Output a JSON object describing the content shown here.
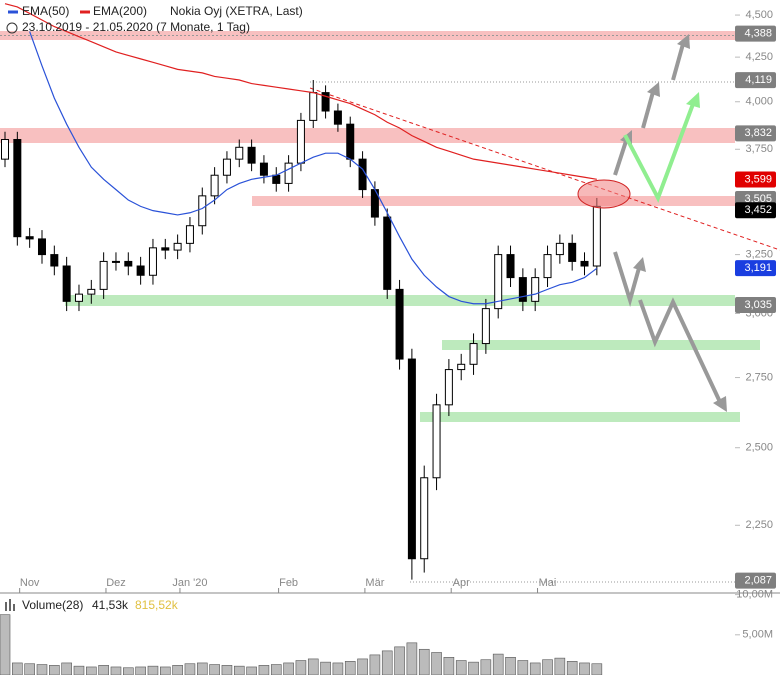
{
  "chart_data": {
    "type": "candlestick",
    "title": "Nokia Oyj (XETRA, Last)",
    "subtitle": "23.10.2019 - 21.05.2020  (7 Monate, 1 Tag)",
    "log_scale": true,
    "ylim": [
      2.055,
      4.593
    ],
    "yticks": [
      {
        "value": 4.5,
        "label": "4,500"
      },
      {
        "value": 4.25,
        "label": "4,250"
      },
      {
        "value": 4.0,
        "label": "4,000"
      },
      {
        "value": 3.75,
        "label": "3,750"
      },
      {
        "value": 3.5,
        "label": "3,500"
      },
      {
        "value": 3.25,
        "label": "3,250"
      },
      {
        "value": 3.0,
        "label": "3,000"
      },
      {
        "value": 2.75,
        "label": "2,750"
      },
      {
        "value": 2.5,
        "label": "2,500"
      },
      {
        "value": 2.25,
        "label": "2,250"
      }
    ],
    "categories": [
      null,
      null,
      "Nov",
      null,
      null,
      null,
      null,
      null,
      null,
      "Dez",
      null,
      null,
      null,
      null,
      null,
      "Jan '20",
      null,
      null,
      null,
      null,
      null,
      null,
      null,
      "Feb",
      null,
      null,
      null,
      null,
      null,
      null,
      "Mär",
      null,
      null,
      null,
      null,
      null,
      null,
      "Apr",
      null,
      null,
      null,
      null,
      null,
      null,
      "Mai",
      null,
      null,
      null,
      null
    ],
    "open": [
      3.7,
      3.8,
      3.33,
      3.32,
      3.25,
      3.2,
      3.05,
      3.08,
      3.1,
      3.22,
      3.22,
      3.2,
      3.16,
      3.28,
      3.27,
      3.3,
      3.38,
      3.52,
      3.62,
      3.7,
      3.76,
      3.68,
      3.62,
      3.58,
      3.68,
      3.9,
      4.05,
      3.95,
      3.88,
      3.7,
      3.55,
      3.42,
      3.1,
      2.82,
      2.15,
      2.4,
      2.65,
      2.78,
      2.8,
      2.88,
      3.02,
      3.25,
      3.15,
      3.05,
      3.15,
      3.25,
      3.3,
      3.22,
      3.2
    ],
    "high": [
      3.84,
      3.84,
      3.37,
      3.36,
      3.29,
      3.24,
      3.12,
      3.14,
      3.26,
      3.26,
      3.26,
      3.24,
      3.32,
      3.32,
      3.34,
      3.42,
      3.56,
      3.66,
      3.74,
      3.8,
      3.8,
      3.72,
      3.66,
      3.72,
      3.94,
      4.12,
      4.09,
      3.99,
      3.92,
      3.74,
      3.59,
      3.46,
      3.14,
      2.86,
      2.44,
      2.69,
      2.82,
      2.84,
      2.92,
      3.06,
      3.29,
      3.29,
      3.19,
      3.19,
      3.29,
      3.34,
      3.34,
      3.26,
      3.51
    ],
    "low": [
      3.66,
      3.29,
      3.28,
      3.21,
      3.16,
      3.01,
      3.01,
      3.04,
      3.06,
      3.18,
      3.16,
      3.12,
      3.12,
      3.23,
      3.23,
      3.26,
      3.34,
      3.48,
      3.58,
      3.66,
      3.64,
      3.58,
      3.54,
      3.54,
      3.64,
      3.86,
      3.91,
      3.84,
      3.66,
      3.51,
      3.38,
      3.06,
      2.78,
      2.09,
      2.11,
      2.36,
      2.61,
      2.74,
      2.76,
      2.84,
      2.98,
      3.11,
      3.01,
      3.01,
      3.11,
      3.21,
      3.18,
      3.16,
      3.16
    ],
    "close": [
      3.8,
      3.33,
      3.32,
      3.25,
      3.2,
      3.05,
      3.08,
      3.1,
      3.22,
      3.22,
      3.2,
      3.16,
      3.28,
      3.27,
      3.3,
      3.38,
      3.52,
      3.62,
      3.7,
      3.76,
      3.68,
      3.62,
      3.58,
      3.68,
      3.9,
      4.05,
      3.95,
      3.88,
      3.7,
      3.55,
      3.42,
      3.1,
      2.82,
      2.15,
      2.4,
      2.65,
      2.78,
      2.8,
      2.88,
      3.02,
      3.25,
      3.15,
      3.05,
      3.15,
      3.25,
      3.3,
      3.22,
      3.2,
      3.47
    ],
    "series": [
      {
        "name": "EMA(50)",
        "color": "#2a52d8",
        "values": [
          null,
          null,
          4.4,
          4.2,
          4.02,
          3.88,
          3.76,
          3.66,
          3.6,
          3.55,
          3.5,
          3.47,
          3.45,
          3.44,
          3.43,
          3.44,
          3.46,
          3.5,
          3.55,
          3.58,
          3.6,
          3.61,
          3.62,
          3.65,
          3.68,
          3.71,
          3.73,
          3.73,
          3.7,
          3.65,
          3.55,
          3.44,
          3.33,
          3.23,
          3.16,
          3.11,
          3.07,
          3.05,
          3.04,
          3.04,
          3.05,
          3.06,
          3.07,
          3.08,
          3.1,
          3.12,
          3.13,
          3.15,
          3.19
        ]
      },
      {
        "name": "EMA(200)",
        "color": "#e02020",
        "values": [
          4.57,
          4.55,
          4.51,
          4.47,
          4.43,
          4.4,
          4.37,
          4.34,
          4.31,
          4.28,
          4.26,
          4.24,
          4.22,
          4.2,
          4.18,
          4.17,
          4.16,
          4.14,
          4.13,
          4.12,
          4.1,
          4.09,
          4.08,
          4.07,
          4.06,
          4.05,
          4.03,
          4.01,
          3.99,
          3.96,
          3.93,
          3.89,
          3.86,
          3.82,
          3.79,
          3.76,
          3.74,
          3.72,
          3.7,
          3.69,
          3.68,
          3.67,
          3.66,
          3.65,
          3.64,
          3.63,
          3.62,
          3.61,
          3.6
        ]
      }
    ],
    "price_labels": [
      {
        "value": 4.388,
        "label": "4,388",
        "color": "#7f7f7f"
      },
      {
        "value": 4.119,
        "label": "4,119",
        "color": "#7f7f7f"
      },
      {
        "value": 3.832,
        "label": "3,832",
        "color": "#7f7f7f"
      },
      {
        "value": 3.599,
        "label": "3,599",
        "color": "#e00000"
      },
      {
        "value": 3.505,
        "label": "3,505",
        "color": "#7f7f7f"
      },
      {
        "value": 3.452,
        "label": "3,452",
        "color": "#000000"
      },
      {
        "value": 3.191,
        "label": "3,191",
        "color": "#1a3ee0"
      },
      {
        "value": 3.035,
        "label": "3,035",
        "color": "#7f7f7f"
      },
      {
        "value": 2.087,
        "label": "2,087",
        "color": "#7f7f7f"
      }
    ],
    "volume": {
      "name": "Volume(28)",
      "average": "41,53k",
      "last": "815,52k",
      "ylim": [
        0,
        10.2
      ],
      "yticks": [
        {
          "value": 10,
          "label": "10,00M"
        },
        {
          "value": 5,
          "label": "5,00M"
        }
      ],
      "values": [
        7.5,
        1.5,
        1.4,
        1.3,
        1.2,
        1.5,
        1.1,
        1.0,
        1.2,
        1.0,
        0.9,
        1.0,
        1.1,
        1.0,
        1.2,
        1.4,
        1.5,
        1.3,
        1.2,
        1.1,
        1.0,
        1.2,
        1.3,
        1.5,
        1.8,
        2.0,
        1.6,
        1.5,
        1.7,
        2.0,
        2.5,
        3.0,
        3.5,
        4.0,
        3.2,
        2.8,
        2.2,
        1.8,
        1.6,
        1.9,
        2.6,
        2.2,
        1.8,
        1.5,
        1.9,
        2.1,
        1.7,
        1.5,
        1.4
      ]
    }
  }
}
